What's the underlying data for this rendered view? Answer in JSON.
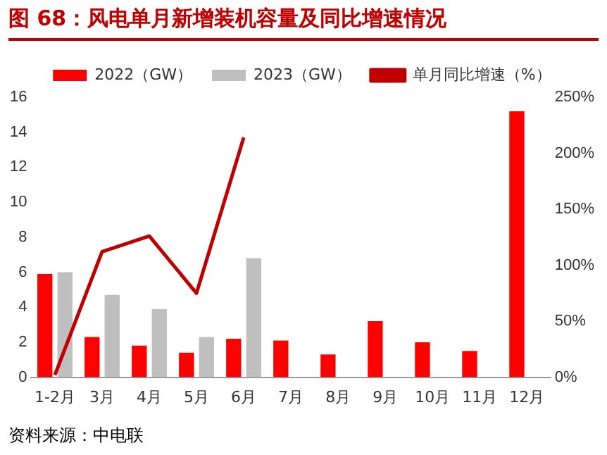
{
  "chart_data": {
    "type": "bar",
    "title": "图 68：风电单月新增装机容量及同比增速情况",
    "categories": [
      "1-2月",
      "3月",
      "4月",
      "5月",
      "6月",
      "7月",
      "8月",
      "9月",
      "10月",
      "11月",
      "12月"
    ],
    "series": [
      {
        "name": "2022（GW）",
        "color": "#ff0000",
        "values": [
          5.9,
          2.3,
          1.8,
          1.4,
          2.2,
          2.1,
          1.3,
          3.2,
          2.0,
          1.5,
          15.2
        ]
      },
      {
        "name": "2023（GW）",
        "color": "#bfbfbf",
        "values": [
          6.0,
          4.7,
          3.9,
          2.3,
          6.8,
          null,
          null,
          null,
          null,
          null,
          null
        ]
      },
      {
        "name": "单月同比增速（%）",
        "type": "line",
        "axis": "y2",
        "color": "#c00000",
        "values": [
          2,
          112,
          126,
          75,
          214,
          null,
          null,
          null,
          null,
          null,
          null
        ]
      }
    ],
    "ylim": [
      0,
      16
    ],
    "yticks": [
      0,
      2,
      4,
      6,
      8,
      10,
      12,
      14,
      16
    ],
    "y2lim": [
      0,
      250
    ],
    "y2ticks": [
      {
        "value": 0,
        "label": "0%"
      },
      {
        "value": 50,
        "label": "50%"
      },
      {
        "value": 100,
        "label": "100%"
      },
      {
        "value": 150,
        "label": "150%"
      },
      {
        "value": 200,
        "label": "200%"
      },
      {
        "value": 250,
        "label": "250%"
      }
    ],
    "grid": false,
    "legend": "top",
    "marker": "none",
    "annotations": [
      "资料来源：中电联"
    ]
  }
}
